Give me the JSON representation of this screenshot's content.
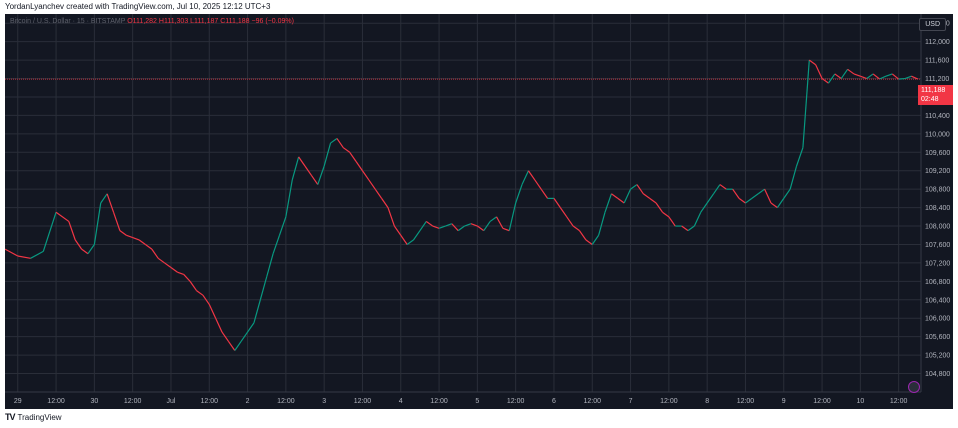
{
  "caption": "YordanLyanchev created with TradingView.com, Jul 10, 2025 12:12 UTC+3",
  "legend": {
    "symbol": "Bitcoin / U.S. Dollar · 15 · BITSTAMP",
    "ohlc": "O111,282 H111,303 L111,187 C111,188 −96 (−0.09%)"
  },
  "currency": "USD",
  "price_tag": {
    "price": "111,188",
    "countdown": "02:48"
  },
  "footer": {
    "brand": "TradingView"
  },
  "colors": {
    "up": "#089981",
    "down": "#f23645",
    "background": "#131722",
    "grid": "#2a2e39",
    "axis_text": "#b2b5be"
  },
  "chart_data": {
    "type": "line",
    "title": "",
    "xlabel": "",
    "ylabel": "",
    "ylim": [
      104400,
      112600
    ],
    "grid": true,
    "y_ticks": [
      104800,
      105200,
      105600,
      106000,
      106400,
      106800,
      107200,
      107600,
      108000,
      108400,
      108800,
      109200,
      109600,
      110000,
      110400,
      110800,
      111200,
      111600,
      112000,
      112400
    ],
    "y_tick_labels": [
      "104,800",
      "105,200",
      "105,600",
      "106,000",
      "106,400",
      "106,800",
      "107,200",
      "107,600",
      "108,000",
      "108,400",
      "108,800",
      "109,200",
      "109,600",
      "110,000",
      "110,400",
      "110,800",
      "111,200",
      "111,600",
      "112,000",
      "112,400"
    ],
    "x_tick_labels": [
      "29",
      "12:00",
      "30",
      "12:00",
      "Jul",
      "12:00",
      "2",
      "12:00",
      "3",
      "12:00",
      "4",
      "12:00",
      "5",
      "12:00",
      "6",
      "12:00",
      "7",
      "12:00",
      "8",
      "12:00",
      "9",
      "12:00",
      "10",
      "12:00"
    ],
    "x_hours": [
      0,
      12,
      24,
      36,
      48,
      60,
      72,
      84,
      96,
      108,
      120,
      132,
      144,
      156,
      168,
      180,
      192,
      204,
      216,
      228,
      240,
      252,
      264,
      276
    ],
    "x_range": [
      -4,
      283
    ],
    "last_price": 111188,
    "series": [
      {
        "x": [
          -4,
          0,
          4,
          8,
          12,
          16,
          18,
          20,
          22,
          24,
          26,
          28,
          30,
          32,
          34,
          36,
          38,
          40,
          42,
          44,
          46,
          48,
          50,
          52,
          54,
          56,
          58,
          60,
          62,
          64,
          66,
          68,
          70,
          72,
          74,
          76,
          78,
          80,
          82,
          84,
          86,
          88,
          90,
          92,
          94,
          96,
          98,
          100,
          102,
          104,
          106,
          108,
          110,
          112,
          114,
          116,
          118,
          120,
          122,
          124,
          126,
          128,
          130,
          132,
          134,
          136,
          138,
          140,
          142,
          144,
          146,
          148,
          150,
          152,
          154,
          156,
          158,
          160,
          162,
          164,
          166,
          168,
          170,
          172,
          174,
          176,
          178,
          180,
          182,
          184,
          186,
          188,
          190,
          192,
          194,
          196,
          198,
          200,
          202,
          204,
          206,
          208,
          210,
          212,
          214,
          216,
          218,
          220,
          222,
          224,
          226,
          228,
          230,
          232,
          234,
          236,
          238,
          240,
          242,
          244,
          246,
          248,
          250,
          252,
          254,
          256,
          258,
          260,
          262,
          264,
          266,
          268,
          270,
          272,
          274,
          276,
          278,
          280,
          282
        ],
        "values": [
          107500,
          107350,
          107300,
          107450,
          108300,
          108100,
          107700,
          107500,
          107400,
          107600,
          108500,
          108700,
          108300,
          107900,
          107800,
          107750,
          107700,
          107600,
          107500,
          107300,
          107200,
          107100,
          107000,
          106950,
          106800,
          106600,
          106500,
          106300,
          106000,
          105700,
          105500,
          105300,
          105500,
          105700,
          105900,
          106400,
          106900,
          107400,
          107800,
          108200,
          109000,
          109500,
          109300,
          109100,
          108900,
          109300,
          109800,
          109900,
          109700,
          109600,
          109400,
          109200,
          109000,
          108800,
          108600,
          108400,
          108000,
          107800,
          107600,
          107700,
          107900,
          108100,
          108000,
          107950,
          108000,
          108050,
          107900,
          108000,
          108050,
          108000,
          107900,
          108100,
          108200,
          107950,
          107900,
          108500,
          108900,
          109200,
          109000,
          108800,
          108600,
          108600,
          108400,
          108200,
          108000,
          107900,
          107700,
          107600,
          107800,
          108300,
          108700,
          108600,
          108500,
          108800,
          108900,
          108700,
          108600,
          108500,
          108300,
          108200,
          108000,
          108000,
          107900,
          108000,
          108300,
          108500,
          108700,
          108900,
          108800,
          108800,
          108600,
          108500,
          108600,
          108700,
          108800,
          108500,
          108400,
          108600,
          108800,
          109300,
          109700,
          111600,
          111500,
          111200,
          111100,
          111300,
          111200,
          111400,
          111300,
          111250,
          111200,
          111300,
          111190,
          111250,
          111300,
          111188,
          111200,
          111250,
          111188
        ]
      }
    ]
  }
}
